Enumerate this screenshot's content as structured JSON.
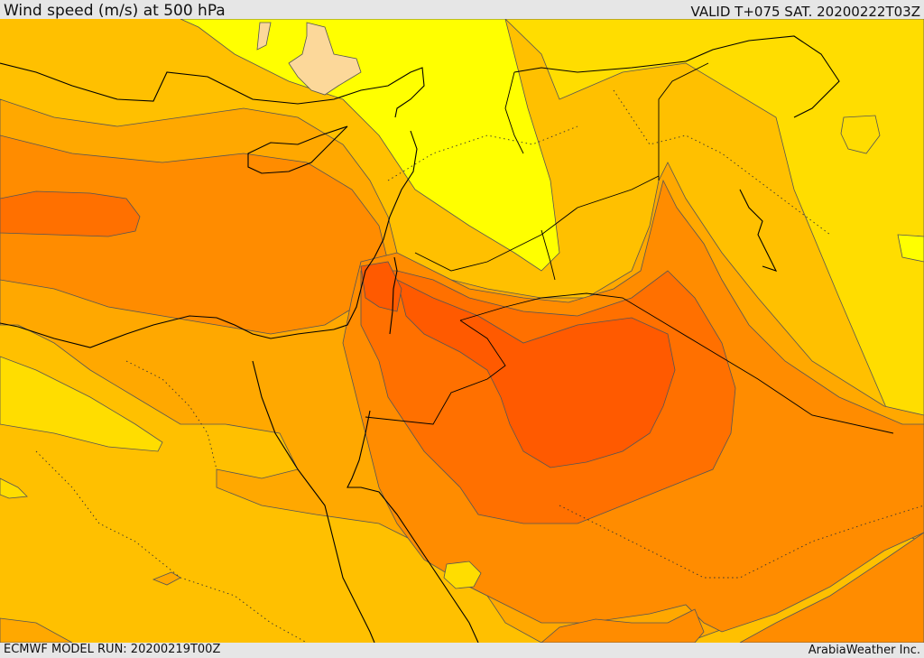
{
  "header": {
    "title": "Wind speed (m/s) at 500 hPa",
    "valid": "VALID T+075 SAT. 20200222T03Z"
  },
  "footer": {
    "model_run": "ECMWF MODEL RUN: 20200219T00Z",
    "credit": "ArabiaWeather Inc."
  },
  "map": {
    "colors": {
      "light_peach": "#fcd89a",
      "yellow": "#ffff00",
      "gold": "#ffdd00",
      "amber": "#ffc000",
      "light_orange": "#ffa800",
      "orange": "#ff8c00",
      "dark_orange": "#ff7000",
      "red_orange": "#ff5a00",
      "contour": "#555555",
      "coastline": "#000000"
    }
  }
}
